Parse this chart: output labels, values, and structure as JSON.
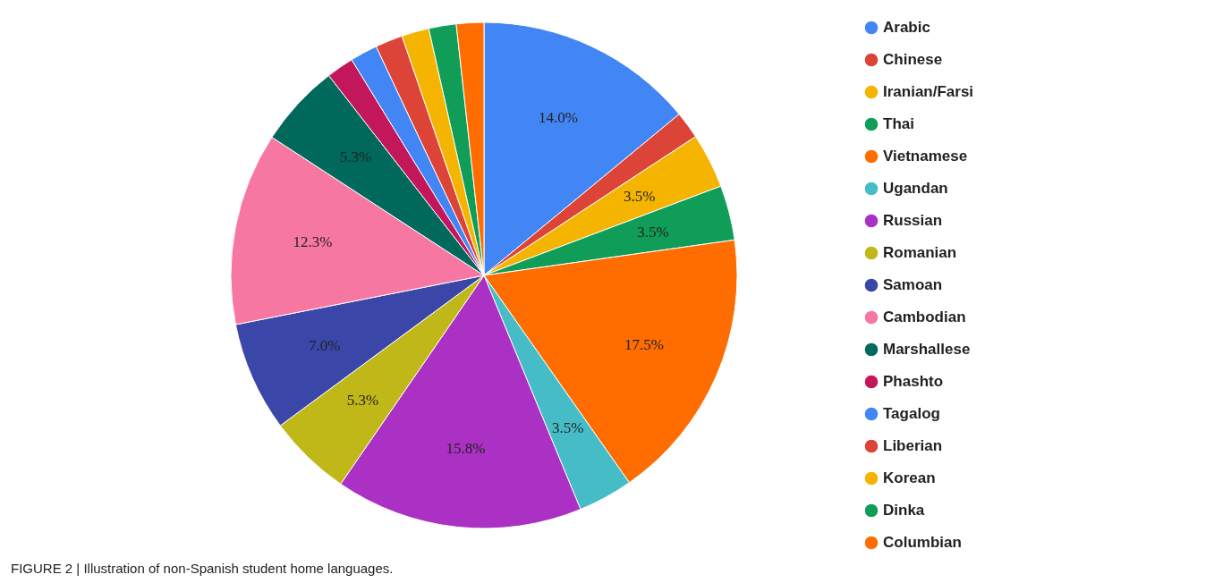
{
  "chart_data": {
    "type": "pie",
    "annotations": [
      "FIGURE 2 | Illustration of non-Spanish student home languages."
    ],
    "categories": [
      "Arabic",
      "Chinese",
      "Iranian/Farsi",
      "Thai",
      "Vietnamese",
      "Ugandan",
      "Russian",
      "Romanian",
      "Samoan",
      "Cambodian",
      "Marshallese",
      "Phashto",
      "Tagalog",
      "Liberian",
      "Korean",
      "Dinka",
      "Columbian"
    ],
    "values": [
      14.0,
      1.75,
      3.5,
      3.5,
      17.5,
      3.5,
      15.8,
      5.3,
      7.0,
      12.3,
      5.3,
      1.75,
      1.75,
      1.75,
      1.75,
      1.75,
      1.75
    ],
    "value_labels": [
      "14.0%",
      null,
      "3.5%",
      "3.5%",
      "17.5%",
      "3.5%",
      "15.8%",
      "5.3%",
      "7.0%",
      "12.3%",
      "5.3%",
      null,
      null,
      null,
      null,
      null,
      null
    ],
    "colors": [
      "#4285f4",
      "#db4437",
      "#f4b400",
      "#0f9d58",
      "#ff6d00",
      "#46bdc6",
      "#ab30c4",
      "#c0b719",
      "#3b47a8",
      "#f777a3",
      "#00695c",
      "#c2185b",
      "#4285f4",
      "#db4437",
      "#f4b400",
      "#0f9d58",
      "#ff6d00"
    ],
    "legend": "right"
  }
}
